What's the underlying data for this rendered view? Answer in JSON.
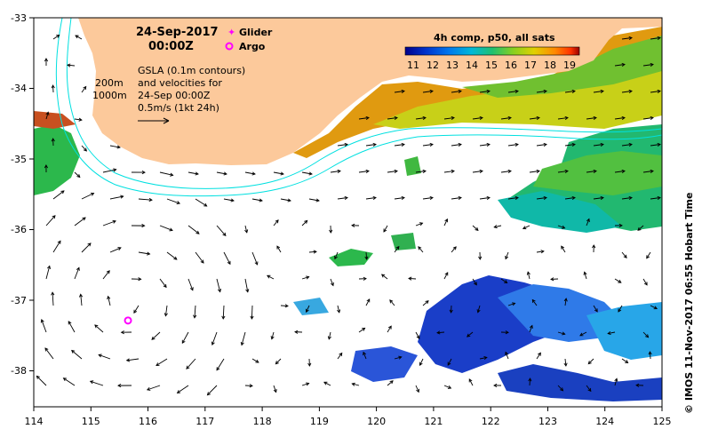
{
  "title": {
    "date": "24-Sep-2017",
    "time": "00:00Z"
  },
  "legend": {
    "glider_label": "Glider",
    "argo_label": "Argo",
    "glider_color": "#ff00ff",
    "argo_color": "#ff00ff"
  },
  "annotations": {
    "depth_200": "200m",
    "depth_1000": "1000m",
    "gsla_line1": "GSLA (0.1m contours)",
    "gsla_line2": "and velocities for",
    "gsla_line3": "24-Sep 00:00Z",
    "gsla_line4": "0.5m/s (1kt 24h)"
  },
  "colorbar": {
    "title": "4h comp, p50, all sats",
    "tick_labels": [
      "11",
      "12",
      "13",
      "14",
      "15",
      "16",
      "17",
      "18",
      "19"
    ],
    "colors": [
      "#00008b",
      "#0033cc",
      "#0077ee",
      "#00b8d8",
      "#20c070",
      "#88d020",
      "#e0d000",
      "#ff8800",
      "#ff3300",
      "#990000"
    ]
  },
  "axes": {
    "x_ticks": [
      "114",
      "115",
      "116",
      "117",
      "118",
      "119",
      "120",
      "121",
      "122",
      "123",
      "124",
      "125"
    ],
    "y_ticks": [
      "-33",
      "-34",
      "-35",
      "-36",
      "-37",
      "-38"
    ]
  },
  "side_label": "© IMOS 11-Nov-2017 06:55 Hobart Time",
  "argo_float": {
    "lon": 115.65,
    "lat": -37.28
  },
  "colors": {
    "land": "#fcc99b",
    "ocean": "#ffffff",
    "isobath": "#00e0e0",
    "arrow": "#000000"
  }
}
